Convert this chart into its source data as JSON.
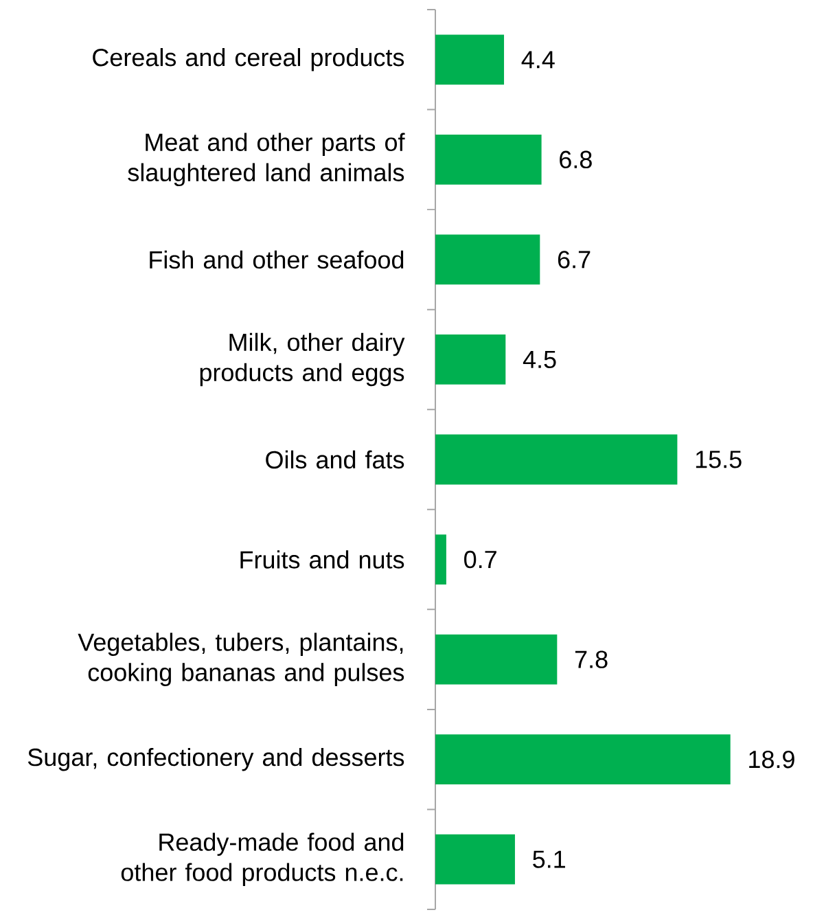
{
  "chart_data": {
    "type": "bar",
    "orientation": "horizontal",
    "categories": [
      "Cereals and cereal products",
      "Meat and other parts of slaughtered land animals",
      "Fish and other seafood",
      "Milk, other dairy products and eggs",
      "Oils and fats",
      "Fruits and nuts",
      "Vegetables, tubers, plantains, cooking bananas and pulses",
      "Sugar, confectionery and desserts",
      "Ready-made food and other food products n.e.c."
    ],
    "values": [
      4.4,
      6.8,
      6.7,
      4.5,
      15.5,
      0.7,
      7.8,
      18.9,
      5.1
    ],
    "color": "#00b050",
    "data_labels": true
  }
}
